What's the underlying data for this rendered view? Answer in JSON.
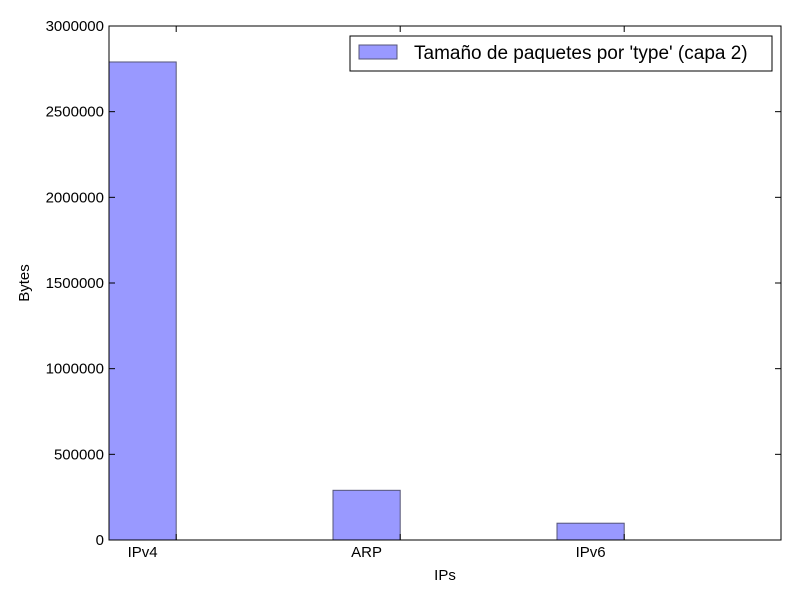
{
  "chart_data": {
    "type": "bar",
    "categories": [
      "IPv4",
      "ARP",
      "IPv6"
    ],
    "series": [
      {
        "name": "Tamaño de paquetes por 'type' (capa 2)",
        "values": [
          2790000,
          290000,
          98000
        ],
        "color": "#9999ff"
      }
    ],
    "title": "",
    "xlabel": "IPs",
    "ylabel": "Bytes",
    "ylim": [
      0,
      3000000
    ],
    "yticks": [
      "0",
      "500000",
      "1000000",
      "1500000",
      "2000000",
      "2500000",
      "3000000"
    ],
    "grid": false,
    "legend_position": "top-right",
    "bar_edge_color": "#555577"
  }
}
